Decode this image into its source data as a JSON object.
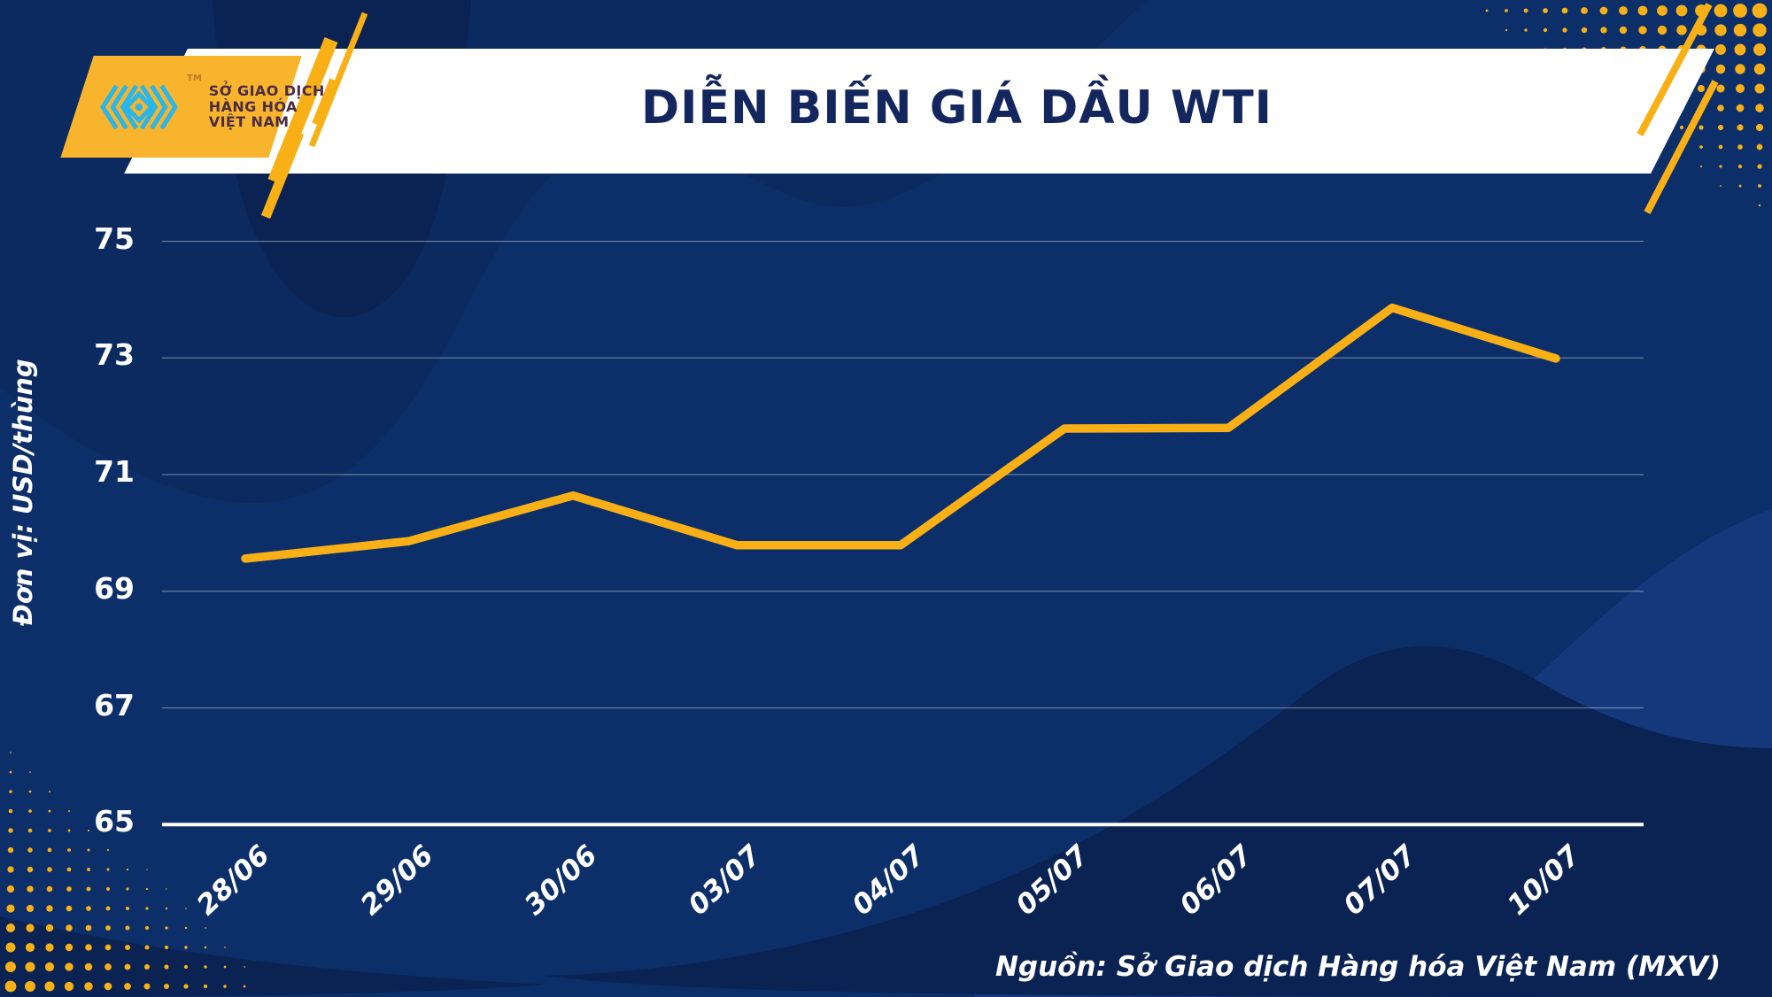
{
  "palette": {
    "bg": "#0C2F6A",
    "bg_dark_1": "#0B2A5F",
    "bg_dark_2": "#0A2353",
    "bg_light": "#15387C",
    "accent_yellow": "#F9B017",
    "logo_yellow": "#F8B42C",
    "cyan": "#2BB6E9",
    "banner_white": "#FFFFFF",
    "title_navy": "#14265E",
    "logo_text": "#4B2C43",
    "grid_line": "rgba(255,255,255,0.38)",
    "axis_white": "#FFFFFF",
    "text_white": "#FFFFFF"
  },
  "header": {
    "title": "DIỄN BIẾN GIÁ DẦU WTI",
    "logo": {
      "mark_icon": "mxv-diamond-chevrons",
      "trademark": "TM",
      "line1": "SỞ GIAO DỊCH",
      "line2": "HÀNG HÓA",
      "line3": "VIỆT NAM"
    }
  },
  "chart_data": {
    "type": "line",
    "title": "DIỄN BIẾN GIÁ DẦU WTI",
    "categories": [
      "28/06",
      "29/06",
      "30/06",
      "03/07",
      "04/07",
      "05/07",
      "06/07",
      "07/07",
      "10/07"
    ],
    "series": [
      {
        "name": "WTI",
        "values": [
          69.56,
          69.86,
          70.64,
          69.79,
          69.79,
          71.79,
          71.8,
          73.86,
          72.99
        ]
      }
    ],
    "xlabel": "",
    "ylabel": "Đơn vị: USD/thùng",
    "yticks": [
      65,
      67,
      69,
      71,
      73,
      75
    ],
    "ylim": [
      65,
      75.8
    ],
    "grid": "horizontal",
    "legend": "none",
    "line_color": "#F9B017"
  },
  "footer": {
    "source": "Nguồn: Sở Giao dịch Hàng hóa Việt Nam (MXV)"
  }
}
